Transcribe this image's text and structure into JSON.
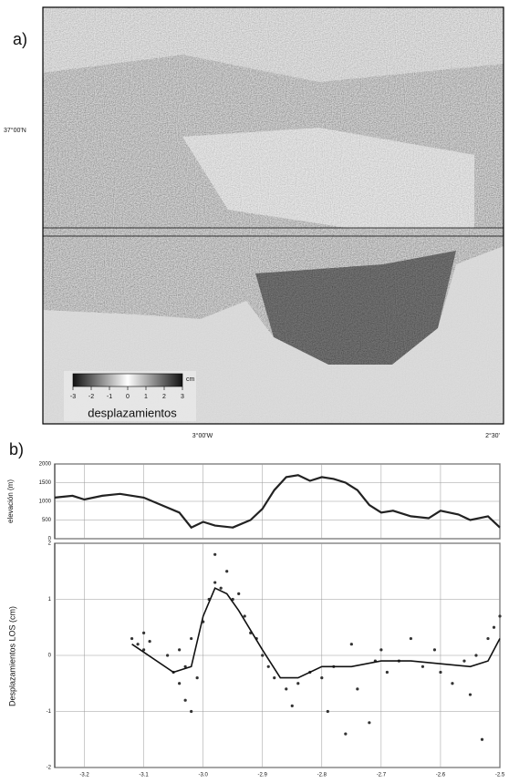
{
  "figure": {
    "panel_a_label": "a)",
    "panel_b_label": "b)",
    "map": {
      "lat_label": "37°00'N",
      "lon_labels": [
        "3°00'W",
        "2°30'"
      ],
      "colorbar": {
        "label": "desplazamientos",
        "unit": "cm",
        "range": [
          -3,
          3
        ],
        "ticks": [
          -3,
          -2,
          -1,
          0,
          1,
          2,
          3
        ]
      }
    }
  },
  "chart_data": [
    {
      "type": "line",
      "ylabel": "elevación (m)",
      "color": "#222222",
      "xlim": [
        -3.25,
        -2.5
      ],
      "ylim": [
        0,
        2000
      ],
      "yticks": [
        0,
        500,
        1000,
        1500,
        2000
      ],
      "grid": true,
      "x": [
        -3.25,
        -3.22,
        -3.2,
        -3.17,
        -3.14,
        -3.1,
        -3.07,
        -3.04,
        -3.02,
        -3.0,
        -2.98,
        -2.95,
        -2.92,
        -2.9,
        -2.88,
        -2.86,
        -2.84,
        -2.82,
        -2.8,
        -2.78,
        -2.76,
        -2.74,
        -2.72,
        -2.7,
        -2.68,
        -2.65,
        -2.62,
        -2.6,
        -2.57,
        -2.55,
        -2.52,
        -2.5
      ],
      "values": [
        1100,
        1150,
        1050,
        1150,
        1200,
        1100,
        900,
        700,
        300,
        450,
        350,
        300,
        500,
        800,
        1300,
        1650,
        1700,
        1550,
        1650,
        1600,
        1500,
        1300,
        900,
        700,
        750,
        600,
        550,
        750,
        650,
        500,
        600,
        300
      ]
    },
    {
      "type": "scatter",
      "ylabel": "Desplazamientos LOS (cm)",
      "xlim": [
        -3.25,
        -2.5
      ],
      "ylim": [
        -2,
        2
      ],
      "yticks": [
        -2,
        -1,
        0,
        1,
        2
      ],
      "grid": true,
      "xticks": [
        -3.2,
        -3.1,
        {
          "value": -3,
          "label": "-3.0"
        },
        -2.9,
        -2.8,
        -2.7,
        -2.6,
        -2.5
      ],
      "series": [
        {
          "style": "points",
          "color": "#333333",
          "x": [
            -3.12,
            -3.11,
            -3.1,
            -3.1,
            -3.09,
            -3.06,
            -3.05,
            -3.04,
            -3.04,
            -3.03,
            -3.03,
            -3.02,
            -3.02,
            -3.01,
            -3.0,
            -2.99,
            -2.98,
            -2.98,
            -2.97,
            -2.96,
            -2.95,
            -2.94,
            -2.93,
            -2.92,
            -2.91,
            -2.9,
            -2.89,
            -2.88,
            -2.86,
            -2.85,
            -2.84,
            -2.82,
            -2.8,
            -2.79,
            -2.78,
            -2.76,
            -2.75,
            -2.74,
            -2.72,
            -2.71,
            -2.7,
            -2.69,
            -2.67,
            -2.65,
            -2.63,
            -2.61,
            -2.6,
            -2.58,
            -2.56,
            -2.55,
            -2.54,
            -2.53,
            -2.52,
            -2.51,
            -2.5
          ],
          "values": [
            0.3,
            0.2,
            0.4,
            0.1,
            0.25,
            0.0,
            -0.3,
            -0.5,
            0.1,
            -0.8,
            -0.2,
            -1.0,
            0.3,
            -0.4,
            0.6,
            1.0,
            1.3,
            1.8,
            1.2,
            1.5,
            1.0,
            1.1,
            0.7,
            0.4,
            0.3,
            0.0,
            -0.2,
            -0.4,
            -0.6,
            -0.9,
            -0.5,
            -0.3,
            -0.4,
            -1.0,
            -0.2,
            -1.4,
            0.2,
            -0.6,
            -1.2,
            -0.1,
            0.1,
            -0.3,
            -0.1,
            0.3,
            -0.2,
            0.1,
            -0.3,
            -0.5,
            -0.1,
            -0.7,
            0.0,
            -1.5,
            0.3,
            0.5,
            0.7
          ]
        },
        {
          "style": "line",
          "color": "#111111",
          "x": [
            -3.12,
            -3.05,
            -3.02,
            -3.0,
            -2.98,
            -2.96,
            -2.94,
            -2.9,
            -2.87,
            -2.84,
            -2.8,
            -2.75,
            -2.7,
            -2.65,
            -2.6,
            -2.55,
            -2.52,
            -2.5
          ],
          "values": [
            0.2,
            -0.3,
            -0.2,
            0.7,
            1.2,
            1.1,
            0.8,
            0.1,
            -0.4,
            -0.4,
            -0.2,
            -0.2,
            -0.1,
            -0.1,
            -0.15,
            -0.2,
            -0.1,
            0.3
          ]
        }
      ]
    }
  ]
}
